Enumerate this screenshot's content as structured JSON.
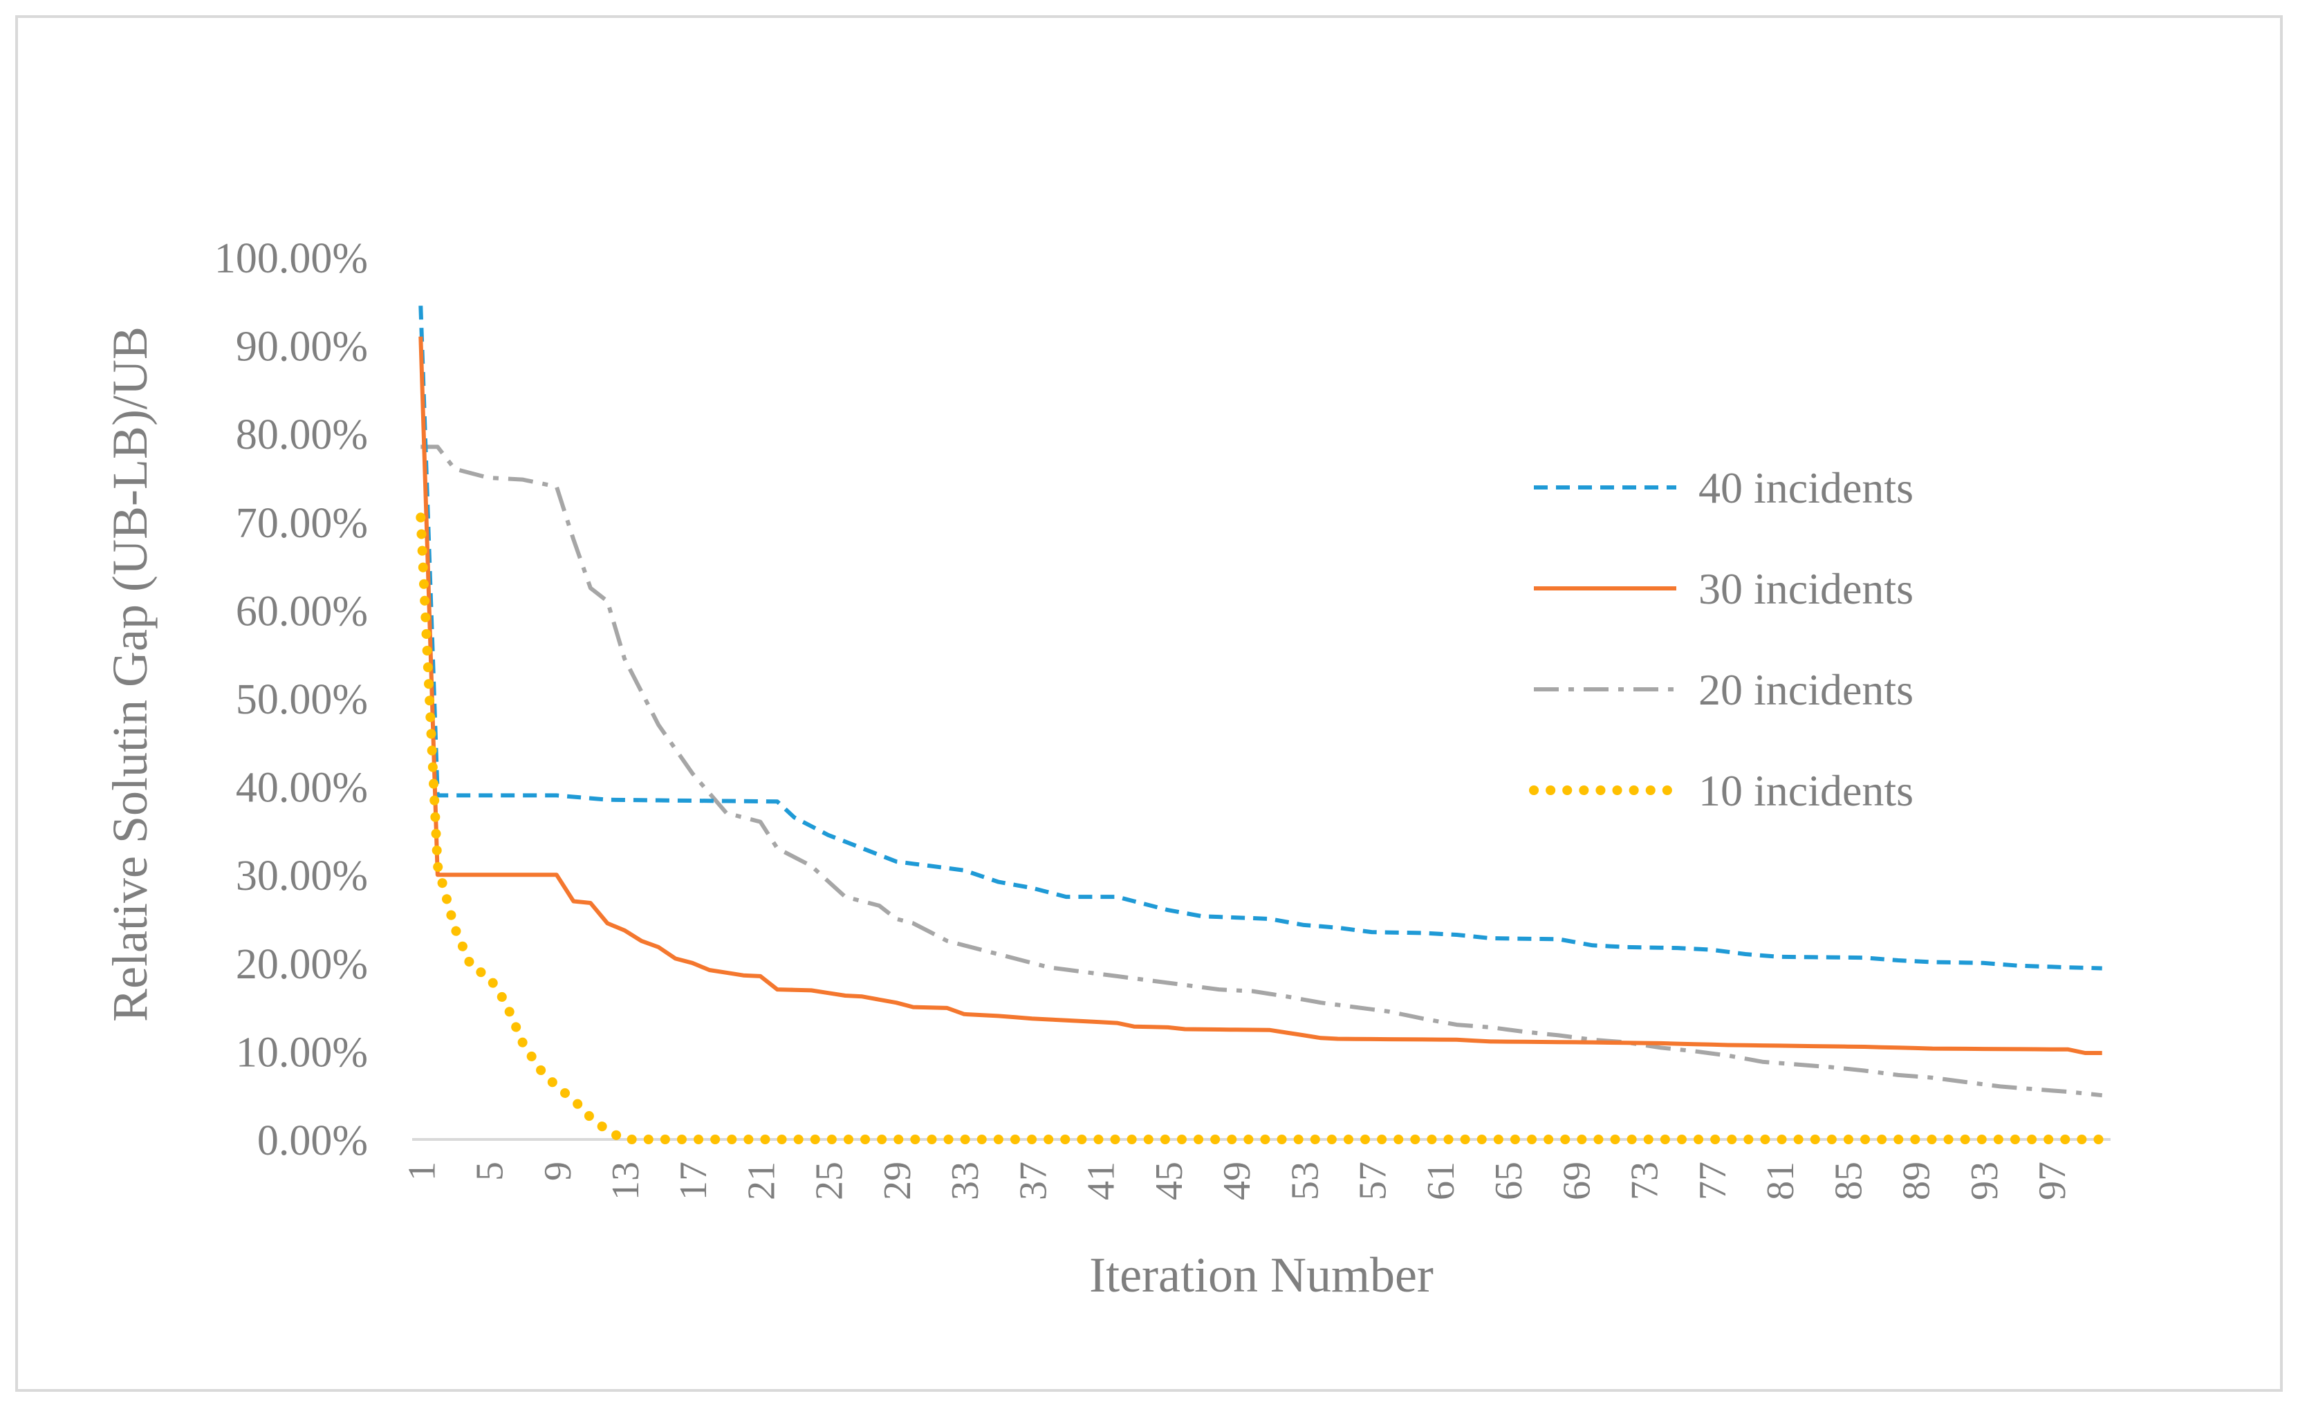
{
  "chart_data": {
    "type": "line",
    "title": "",
    "xlabel": "Iteration Number",
    "ylabel": "Relative Solutin Gap (UB-LB)/UB",
    "ylim": [
      0,
      100
    ],
    "y_tick_labels": [
      "0.00%",
      "10.00%",
      "20.00%",
      "30.00%",
      "40.00%",
      "50.00%",
      "60.00%",
      "70.00%",
      "80.00%",
      "90.00%",
      "100.00%"
    ],
    "x_tick_labels": [
      "1",
      "5",
      "9",
      "13",
      "17",
      "21",
      "25",
      "29",
      "33",
      "37",
      "41",
      "45",
      "49",
      "53",
      "57",
      "61",
      "65",
      "69",
      "73",
      "77",
      "81",
      "85",
      "89",
      "93",
      "97"
    ],
    "legend_position": "right",
    "series": [
      {
        "name": "40 incidents",
        "color": "#1f9ad6",
        "style": "dashed",
        "knots": [
          [
            1,
            94.5
          ],
          [
            2,
            39
          ],
          [
            9,
            39
          ],
          [
            12,
            38.5
          ],
          [
            22,
            38.3
          ],
          [
            23,
            36.5
          ],
          [
            25,
            34.5
          ],
          [
            27,
            33
          ],
          [
            29,
            31.5
          ],
          [
            31,
            31
          ],
          [
            33,
            30.5
          ],
          [
            35,
            29.2
          ],
          [
            37,
            28.5
          ],
          [
            39,
            27.5
          ],
          [
            42,
            27.5
          ],
          [
            45,
            26
          ],
          [
            47,
            25.3
          ],
          [
            51,
            25
          ],
          [
            53,
            24.3
          ],
          [
            55,
            24
          ],
          [
            57,
            23.5
          ],
          [
            60,
            23.4
          ],
          [
            62,
            23.2
          ],
          [
            64,
            22.8
          ],
          [
            68,
            22.7
          ],
          [
            70,
            22
          ],
          [
            72,
            21.8
          ],
          [
            75,
            21.7
          ],
          [
            77,
            21.5
          ],
          [
            79,
            21
          ],
          [
            81,
            20.7
          ],
          [
            86,
            20.6
          ],
          [
            88,
            20.3
          ],
          [
            90,
            20.1
          ],
          [
            93,
            20
          ],
          [
            95,
            19.7
          ],
          [
            98,
            19.5
          ],
          [
            100,
            19.4
          ]
        ]
      },
      {
        "name": "30 incidents",
        "color": "#f4772e",
        "style": "solid",
        "knots": [
          [
            1,
            91
          ],
          [
            2,
            30
          ],
          [
            9,
            30
          ],
          [
            10,
            27
          ],
          [
            11,
            26.8
          ],
          [
            12,
            24.5
          ],
          [
            13,
            23.7
          ],
          [
            14,
            22.5
          ],
          [
            15,
            21.8
          ],
          [
            16,
            20.5
          ],
          [
            17,
            20
          ],
          [
            18,
            19.2
          ],
          [
            19,
            18.9
          ],
          [
            20,
            18.6
          ],
          [
            21,
            18.5
          ],
          [
            22,
            17
          ],
          [
            24,
            16.9
          ],
          [
            26,
            16.3
          ],
          [
            27,
            16.2
          ],
          [
            29,
            15.5
          ],
          [
            30,
            15
          ],
          [
            32,
            14.9
          ],
          [
            33,
            14.2
          ],
          [
            35,
            14
          ],
          [
            37,
            13.7
          ],
          [
            38,
            13.6
          ],
          [
            40,
            13.4
          ],
          [
            42,
            13.2
          ],
          [
            43,
            12.8
          ],
          [
            45,
            12.7
          ],
          [
            46,
            12.5
          ],
          [
            51,
            12.4
          ],
          [
            53,
            11.8
          ],
          [
            54,
            11.5
          ],
          [
            55,
            11.4
          ],
          [
            62,
            11.3
          ],
          [
            64,
            11.1
          ],
          [
            70,
            11
          ],
          [
            74,
            10.9
          ],
          [
            78,
            10.7
          ],
          [
            86,
            10.5
          ],
          [
            90,
            10.3
          ],
          [
            98,
            10.2
          ],
          [
            99,
            9.8
          ],
          [
            100,
            9.8
          ]
        ]
      },
      {
        "name": "20 incidents",
        "color": "#a6a6a6",
        "style": "dash-dot",
        "knots": [
          [
            1,
            78.5
          ],
          [
            2,
            78.5
          ],
          [
            3,
            76
          ],
          [
            5,
            75
          ],
          [
            7,
            74.8
          ],
          [
            9,
            74
          ],
          [
            10,
            68
          ],
          [
            11,
            62.5
          ],
          [
            12,
            61
          ],
          [
            13,
            54.5
          ],
          [
            15,
            47
          ],
          [
            17,
            41.5
          ],
          [
            19,
            37
          ],
          [
            21,
            36
          ],
          [
            22,
            33
          ],
          [
            24,
            31
          ],
          [
            26,
            27.5
          ],
          [
            28,
            26.5
          ],
          [
            29,
            25
          ],
          [
            30,
            24.5
          ],
          [
            32,
            22.5
          ],
          [
            34,
            21.5
          ],
          [
            36,
            20.5
          ],
          [
            38,
            19.5
          ],
          [
            40,
            19
          ],
          [
            42,
            18.5
          ],
          [
            44,
            18
          ],
          [
            46,
            17.5
          ],
          [
            48,
            17
          ],
          [
            50,
            16.8
          ],
          [
            52,
            16.2
          ],
          [
            54,
            15.5
          ],
          [
            56,
            15
          ],
          [
            58,
            14.5
          ],
          [
            60,
            13.7
          ],
          [
            62,
            13
          ],
          [
            64,
            12.7
          ],
          [
            66,
            12.2
          ],
          [
            68,
            11.8
          ],
          [
            70,
            11.3
          ],
          [
            72,
            11
          ],
          [
            74,
            10.4
          ],
          [
            76,
            10
          ],
          [
            78,
            9.5
          ],
          [
            80,
            8.8
          ],
          [
            82,
            8.5
          ],
          [
            84,
            8.2
          ],
          [
            86,
            7.8
          ],
          [
            88,
            7.3
          ],
          [
            90,
            7
          ],
          [
            92,
            6.5
          ],
          [
            94,
            6
          ],
          [
            96,
            5.7
          ],
          [
            98,
            5.4
          ],
          [
            100,
            5
          ]
        ]
      },
      {
        "name": "10 incidents",
        "color": "#ffc000",
        "style": "dotted",
        "knots": [
          [
            1,
            70.5
          ],
          [
            2,
            31
          ],
          [
            3,
            24
          ],
          [
            4,
            19.5
          ],
          [
            5,
            18.5
          ],
          [
            6,
            15.5
          ],
          [
            7,
            11
          ],
          [
            8,
            8
          ],
          [
            9,
            6
          ],
          [
            10,
            4.5
          ],
          [
            11,
            2.5
          ],
          [
            12,
            1
          ],
          [
            13,
            0
          ],
          [
            100,
            0
          ]
        ]
      }
    ]
  }
}
